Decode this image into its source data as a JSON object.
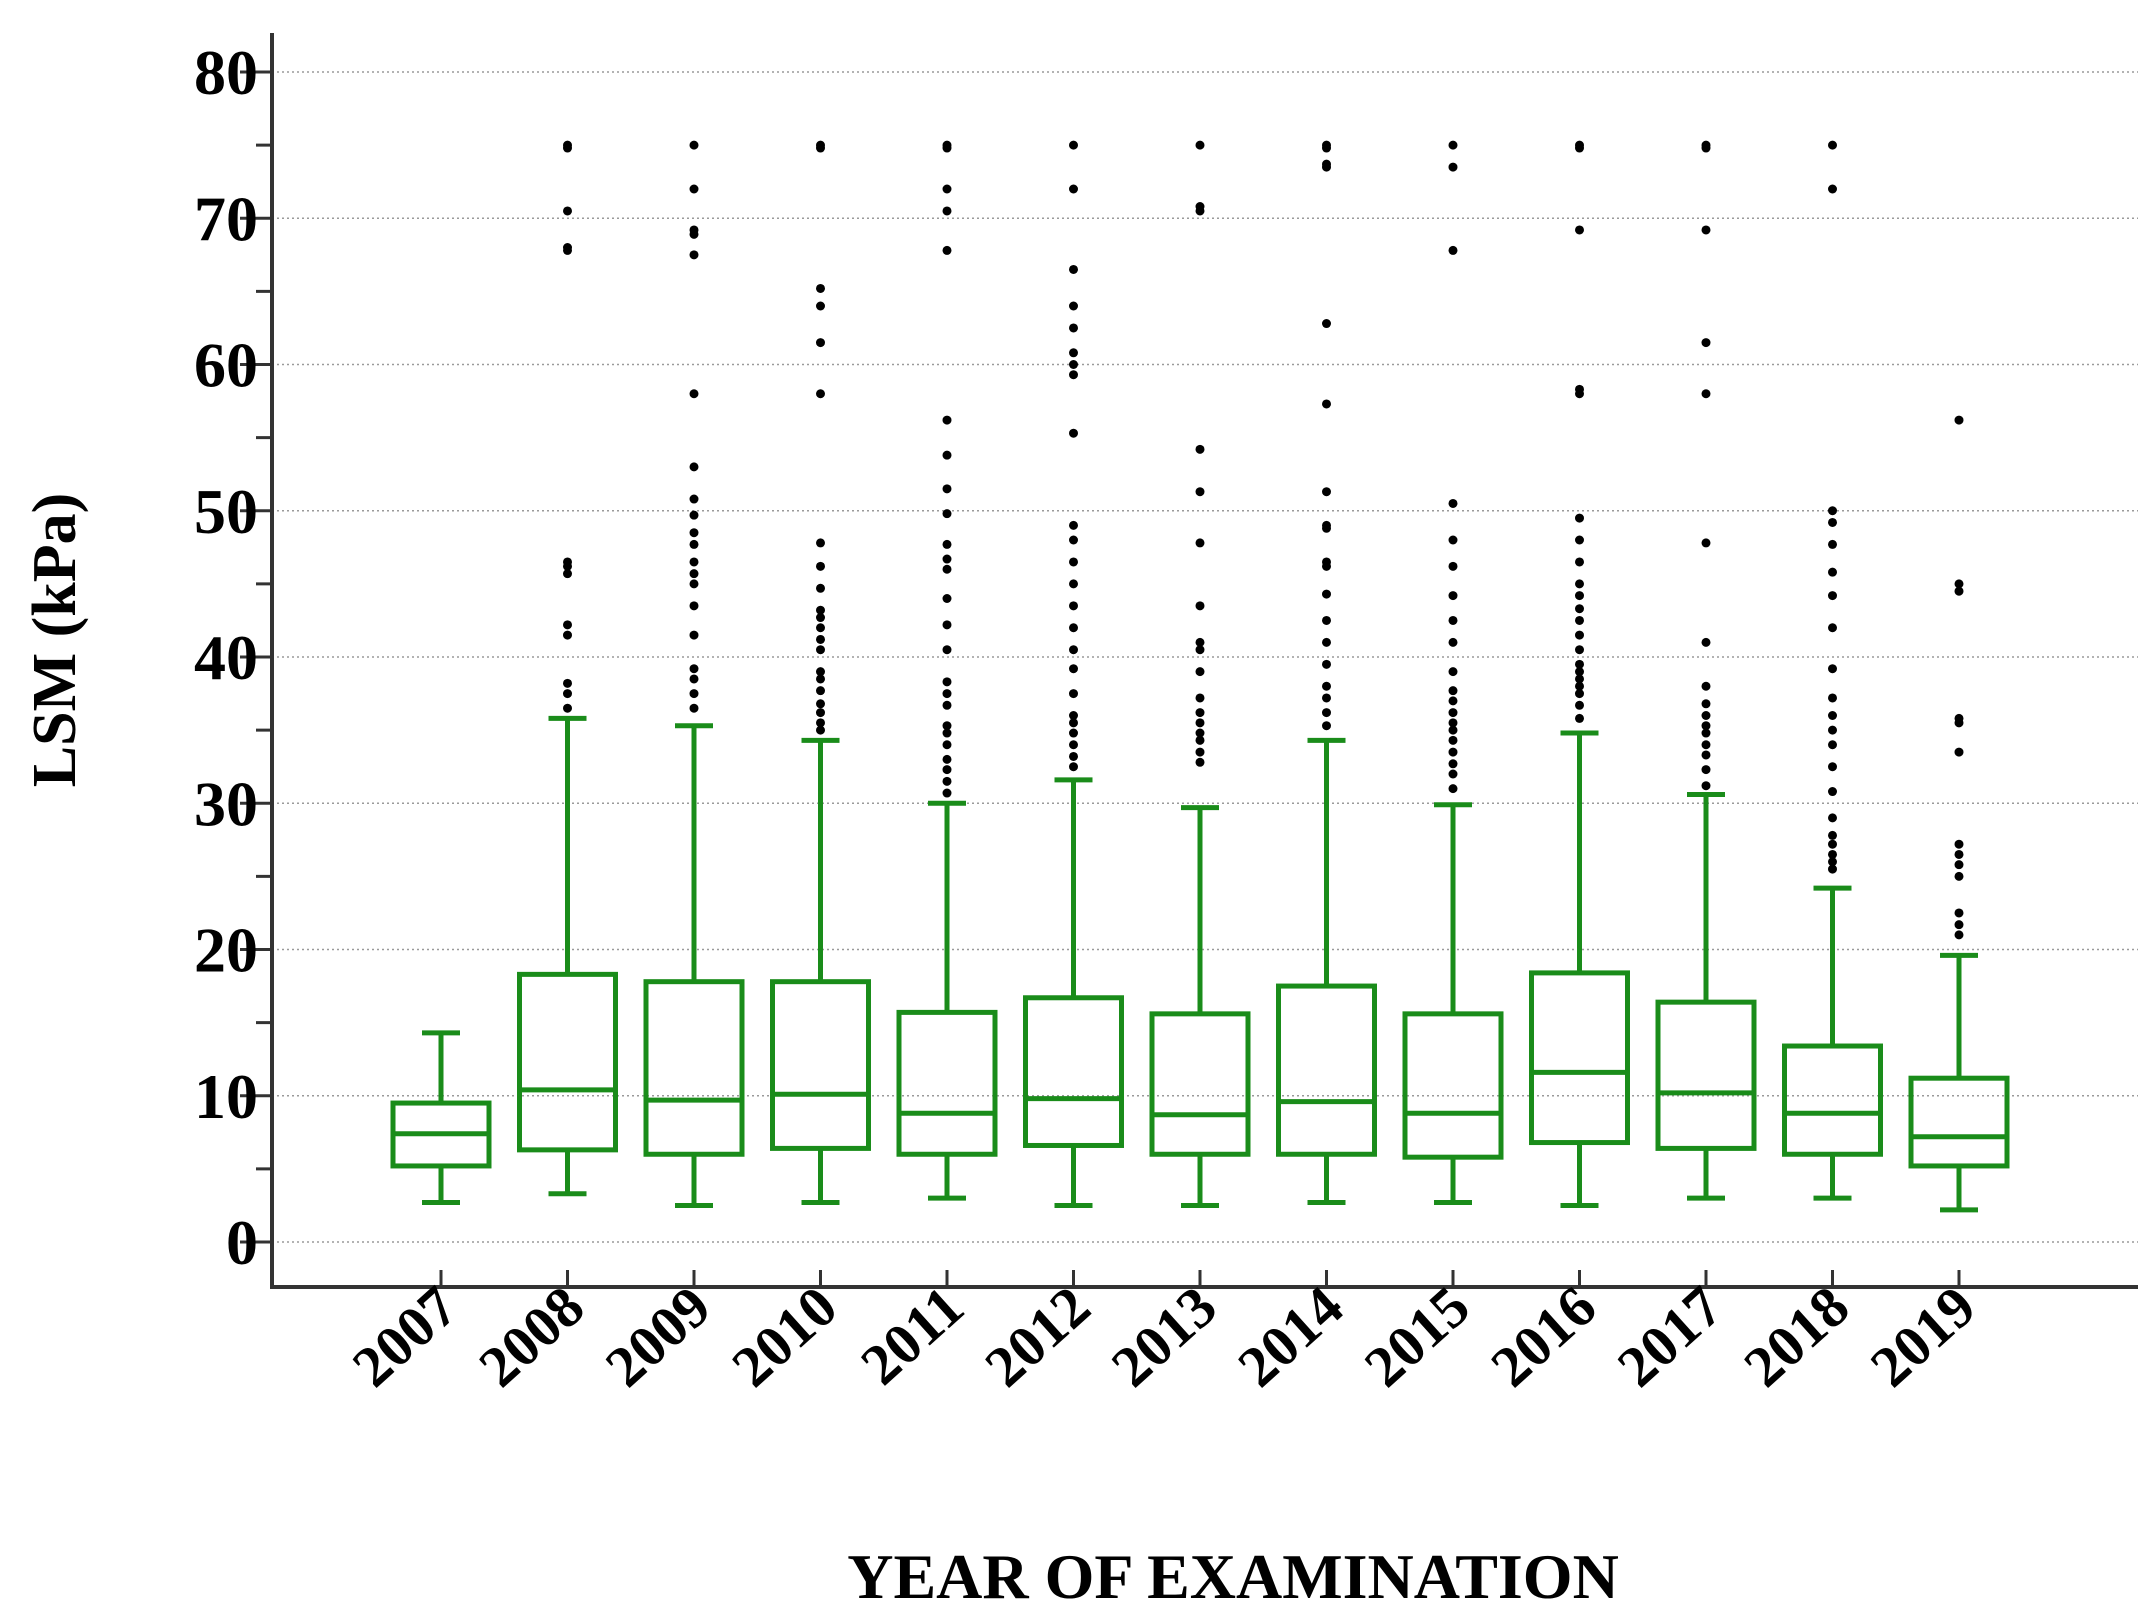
{
  "chart_data": {
    "type": "box",
    "xlabel": "YEAR OF EXAMINATION",
    "ylabel": "LSM (kPa)",
    "ylim": [
      0,
      80
    ],
    "yticks": [
      0,
      10,
      20,
      30,
      40,
      50,
      60,
      70,
      80
    ],
    "grid": "horizontal dotted",
    "box_color": "#1a8c1a",
    "outlier_color": "#000000",
    "categories": [
      "2007",
      "2008",
      "2009",
      "2010",
      "2011",
      "2012",
      "2013",
      "2014",
      "2015",
      "2016",
      "2017",
      "2018",
      "2019"
    ],
    "boxes": [
      {
        "year": "2007",
        "whisker_low": 2.7,
        "q1": 5.2,
        "median": 7.4,
        "q3": 9.5,
        "whisker_high": 14.3,
        "outliers": []
      },
      {
        "year": "2008",
        "whisker_low": 3.3,
        "q1": 6.3,
        "median": 10.4,
        "q3": 18.3,
        "whisker_high": 35.8,
        "outliers": [
          36.5,
          37.5,
          38.2,
          41.5,
          42.2,
          45.7,
          46.2,
          46.5,
          67.8,
          68.0,
          70.5,
          74.8,
          75.0
        ]
      },
      {
        "year": "2009",
        "whisker_low": 2.5,
        "q1": 6.0,
        "median": 9.7,
        "q3": 17.8,
        "whisker_high": 35.3,
        "outliers": [
          36.5,
          37.5,
          38.5,
          39.2,
          41.5,
          43.5,
          45.0,
          45.7,
          46.5,
          47.7,
          48.5,
          49.7,
          50.8,
          53.0,
          58.0,
          67.5,
          68.9,
          69.2,
          72.0,
          75.0
        ]
      },
      {
        "year": "2010",
        "whisker_low": 2.7,
        "q1": 6.4,
        "median": 10.1,
        "q3": 17.8,
        "whisker_high": 34.3,
        "outliers": [
          35.0,
          35.5,
          36.2,
          36.8,
          37.7,
          38.5,
          39.0,
          40.5,
          41.2,
          42.0,
          42.7,
          43.2,
          44.7,
          46.2,
          47.8,
          58.0,
          61.5,
          64.0,
          65.2,
          74.8,
          75.0
        ]
      },
      {
        "year": "2011",
        "whisker_low": 3.0,
        "q1": 6.0,
        "median": 8.8,
        "q3": 15.7,
        "whisker_high": 30.0,
        "outliers": [
          30.7,
          31.5,
          32.3,
          33.0,
          34.0,
          34.8,
          35.3,
          36.7,
          37.5,
          38.3,
          40.5,
          42.2,
          44.0,
          46.0,
          46.7,
          47.7,
          49.8,
          51.5,
          53.8,
          56.2,
          67.8,
          70.5,
          72.0,
          74.8,
          75.0
        ]
      },
      {
        "year": "2012",
        "whisker_low": 2.5,
        "q1": 6.6,
        "median": 9.8,
        "q3": 16.7,
        "whisker_high": 31.6,
        "outliers": [
          32.5,
          33.2,
          34.0,
          34.8,
          35.5,
          36.0,
          37.5,
          39.2,
          40.5,
          42.0,
          43.5,
          45.0,
          46.5,
          48.0,
          49.0,
          55.3,
          59.3,
          60.0,
          60.8,
          62.5,
          64.0,
          66.5,
          72.0,
          75.0
        ]
      },
      {
        "year": "2013",
        "whisker_low": 2.5,
        "q1": 6.0,
        "median": 8.7,
        "q3": 15.6,
        "whisker_high": 29.7,
        "outliers": [
          32.8,
          33.5,
          34.3,
          34.8,
          35.5,
          36.2,
          37.2,
          39.0,
          40.5,
          41.0,
          43.5,
          47.8,
          51.3,
          54.2,
          70.5,
          70.8,
          75.0
        ]
      },
      {
        "year": "2014",
        "whisker_low": 2.7,
        "q1": 6.0,
        "median": 9.6,
        "q3": 17.5,
        "whisker_high": 34.3,
        "outliers": [
          35.3,
          36.2,
          37.2,
          38.0,
          39.5,
          41.0,
          42.5,
          44.3,
          46.2,
          46.5,
          48.8,
          49.0,
          51.3,
          57.3,
          62.8,
          73.5,
          73.7,
          74.8,
          75.0
        ]
      },
      {
        "year": "2015",
        "whisker_low": 2.7,
        "q1": 5.8,
        "median": 8.8,
        "q3": 15.6,
        "whisker_high": 29.9,
        "outliers": [
          31.0,
          32.0,
          32.7,
          33.5,
          34.3,
          35.0,
          35.5,
          36.2,
          37.0,
          37.7,
          39.0,
          41.0,
          42.5,
          44.2,
          46.2,
          48.0,
          50.5,
          67.8,
          73.5,
          75.0
        ]
      },
      {
        "year": "2016",
        "whisker_low": 2.5,
        "q1": 6.8,
        "median": 11.6,
        "q3": 18.4,
        "whisker_high": 34.8,
        "outliers": [
          35.8,
          36.7,
          37.5,
          38.0,
          38.5,
          39.0,
          39.5,
          40.5,
          41.5,
          42.5,
          43.3,
          44.2,
          45.0,
          46.5,
          48.0,
          49.5,
          58.0,
          58.3,
          69.2,
          74.8,
          75.0
        ]
      },
      {
        "year": "2017",
        "whisker_low": 3.0,
        "q1": 6.4,
        "median": 10.2,
        "q3": 16.4,
        "whisker_high": 30.6,
        "outliers": [
          31.2,
          32.3,
          33.3,
          34.0,
          34.8,
          35.3,
          36.0,
          36.8,
          38.0,
          41.0,
          47.8,
          58.0,
          61.5,
          69.2,
          74.8,
          75.0
        ]
      },
      {
        "year": "2018",
        "whisker_low": 3.0,
        "q1": 6.0,
        "median": 8.8,
        "q3": 13.4,
        "whisker_high": 24.2,
        "outliers": [
          25.5,
          26.0,
          26.5,
          27.2,
          27.8,
          29.0,
          30.8,
          32.5,
          34.0,
          35.0,
          36.0,
          37.2,
          39.2,
          42.0,
          44.2,
          45.8,
          47.7,
          49.2,
          50.0,
          72.0,
          75.0
        ]
      },
      {
        "year": "2019",
        "whisker_low": 2.2,
        "q1": 5.2,
        "median": 7.2,
        "q3": 11.2,
        "whisker_high": 19.6,
        "outliers": [
          21.0,
          21.7,
          22.5,
          25.0,
          25.8,
          26.5,
          27.2,
          33.5,
          35.5,
          35.8,
          44.5,
          45.0,
          56.2
        ]
      }
    ]
  }
}
